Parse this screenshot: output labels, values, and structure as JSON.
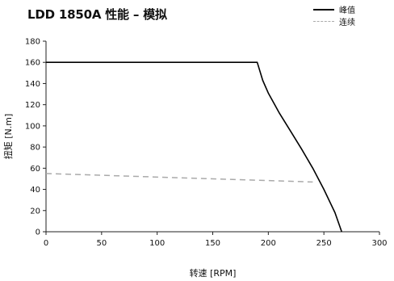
{
  "chart_data": {
    "type": "line",
    "title": "LDD 1850A 性能 – 模拟",
    "xlabel": "转速 [RPM]",
    "ylabel": "扭矩 [N.m]",
    "xlim": [
      0,
      300
    ],
    "ylim": [
      0,
      180
    ],
    "xticks": [
      0,
      50,
      100,
      150,
      200,
      250,
      300
    ],
    "yticks": [
      0,
      20,
      40,
      60,
      80,
      100,
      120,
      140,
      160,
      180
    ],
    "grid": false,
    "legend_position": "top-right",
    "series": [
      {
        "name": "峰值",
        "style": "solid",
        "color": "#000000",
        "x": [
          0,
          190,
          195,
          200,
          210,
          220,
          230,
          240,
          250,
          260,
          266
        ],
        "y": [
          160,
          160,
          143,
          131,
          112,
          95,
          78,
          60,
          40,
          18,
          0
        ]
      },
      {
        "name": "连续",
        "style": "dashed",
        "color": "#aaaaaa",
        "x": [
          0,
          240
        ],
        "y": [
          55,
          47
        ]
      }
    ]
  }
}
